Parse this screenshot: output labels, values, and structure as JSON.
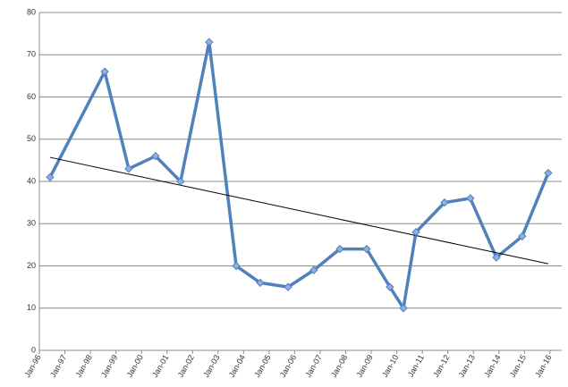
{
  "chart_data": {
    "type": "line",
    "x": [
      1996.42,
      1998.56,
      1999.5,
      2000.55,
      2001.53,
      2002.65,
      2003.71,
      2004.65,
      2005.74,
      2006.75,
      2007.77,
      2008.82,
      2009.73,
      2010.26,
      2010.75,
      2011.87,
      2012.88,
      2013.9,
      2014.91,
      2015.93
    ],
    "values": [
      41,
      66,
      43,
      46,
      40,
      73,
      20,
      16,
      15,
      19,
      24,
      24,
      15,
      10,
      28,
      35,
      36,
      22,
      27,
      42
    ],
    "color": "#4f81bd",
    "trendline": {
      "x": [
        1996.42,
        2015.93
      ],
      "values": [
        45.7,
        20.5
      ],
      "color": "#000000"
    },
    "xlim": [
      1996,
      2016.46
    ],
    "xticks": [
      {
        "value": 1996,
        "label": "Jan-96"
      },
      {
        "value": 1997,
        "label": "Jan-97"
      },
      {
        "value": 1998,
        "label": "Jan-98"
      },
      {
        "value": 1999,
        "label": "Jan-99"
      },
      {
        "value": 2000,
        "label": "Jan-00"
      },
      {
        "value": 2001,
        "label": "Jan-01"
      },
      {
        "value": 2002,
        "label": "Jan-02"
      },
      {
        "value": 2003,
        "label": "Jan-03"
      },
      {
        "value": 2004,
        "label": "Jan-04"
      },
      {
        "value": 2005,
        "label": "Jan-05"
      },
      {
        "value": 2006,
        "label": "Jan-06"
      },
      {
        "value": 2007,
        "label": "Jan-07"
      },
      {
        "value": 2008,
        "label": "Jan-08"
      },
      {
        "value": 2009,
        "label": "Jan-09"
      },
      {
        "value": 2010,
        "label": "Jan-10"
      },
      {
        "value": 2011,
        "label": "Jan-11"
      },
      {
        "value": 2012,
        "label": "Jan-12"
      },
      {
        "value": 2013,
        "label": "Jan-13"
      },
      {
        "value": 2014,
        "label": "Jan-14"
      },
      {
        "value": 2015,
        "label": "Jan-15"
      },
      {
        "value": 2016,
        "label": "Jan-16"
      }
    ],
    "ylim": [
      0,
      80
    ],
    "yticks": [
      0,
      10,
      20,
      30,
      40,
      50,
      60,
      70,
      80
    ],
    "grid": true
  }
}
